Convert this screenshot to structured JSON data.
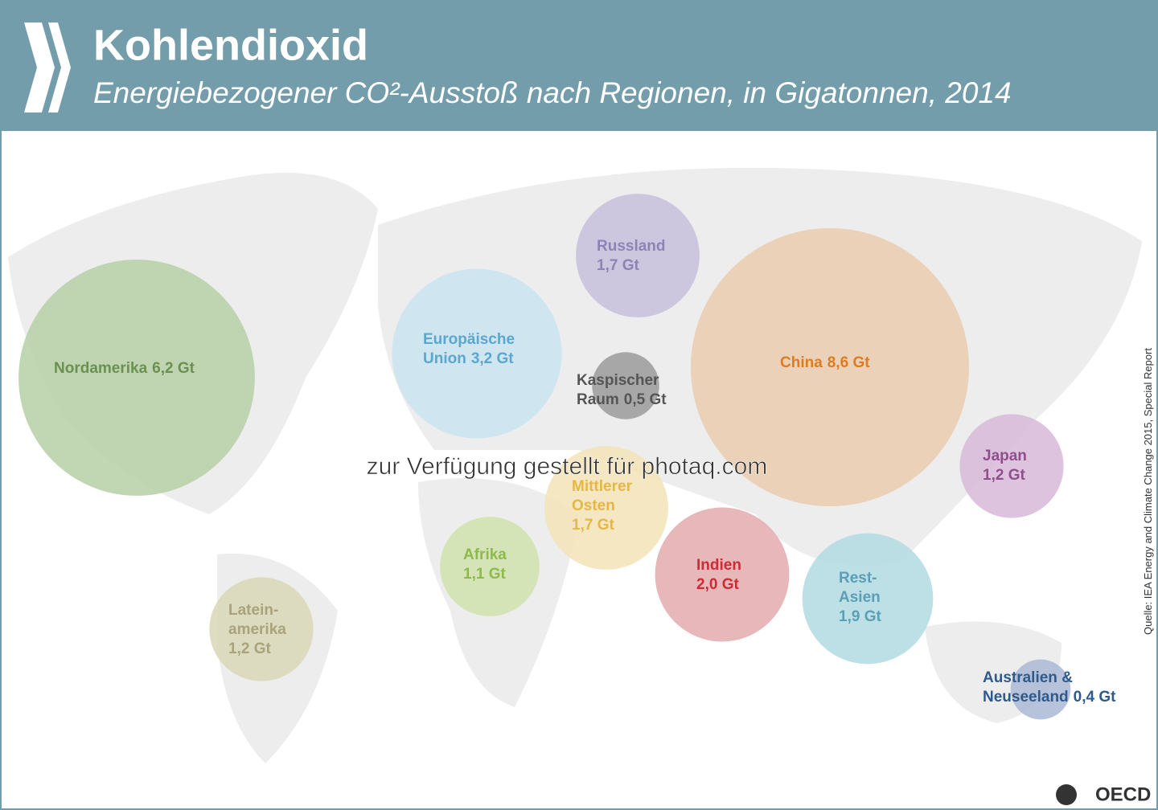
{
  "chart_data": {
    "type": "bubble",
    "title": "Kohlendioxid",
    "subtitle": "Energiebezogener CO²-Ausstoß nach Regionen, in Gigatonnen, 2014",
    "source": "Quelle: IEA Energy and Climate Change 2015, Special Report",
    "logo": "OECD",
    "watermark": "zur Verfügung gestellt für photaq.com",
    "categories": [
      "Nordamerika",
      "Europäische Union",
      "Russland",
      "Kaspischer Raum",
      "China",
      "Japan",
      "Mittlerer Osten",
      "Afrika",
      "Indien",
      "Rest-Asien",
      "Latein-amerika",
      "Australien & Neuseeland"
    ],
    "values": [
      6.2,
      3.2,
      1.7,
      0.5,
      8.6,
      1.2,
      1.7,
      1.1,
      2.0,
      1.9,
      1.2,
      0.4
    ],
    "value_labels": [
      "6,2 Gt",
      "3,2 Gt",
      "1,7 Gt",
      "0,5 Gt",
      "8,6 Gt",
      "1,2 Gt",
      "1,7 Gt",
      "1,1 Gt",
      "2,0 Gt",
      "1,9 Gt",
      "1,2 Gt",
      "0,4 Gt"
    ],
    "colors": [
      "#b6cfa6",
      "#c9e3f0",
      "#c6c0dc",
      "#9a9a9a",
      "#e9cbad",
      "#d8b8d8",
      "#f3e3b7",
      "#cfe2ad",
      "#e3aaae",
      "#b2d9e2",
      "#d8d7b6",
      "#aab8d3"
    ],
    "text_colors": [
      "#6b9150",
      "#5aa7cf",
      "#8d84b5",
      "#555555",
      "#e07b20",
      "#8e4f8c",
      "#e5b845",
      "#8dba4a",
      "#d02a34",
      "#5a9fb5",
      "#a8a37c",
      "#2e5a8c"
    ]
  }
}
